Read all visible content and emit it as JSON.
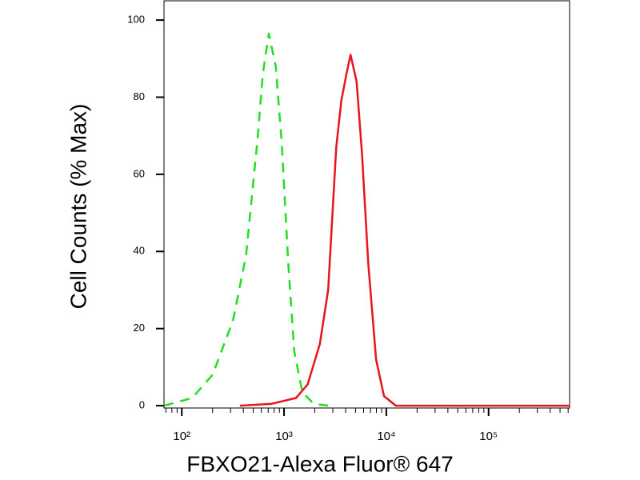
{
  "chart_data": {
    "type": "line",
    "xscale": "log",
    "xlabel": "FBXO21-Alexa Fluor® 647",
    "ylabel": "Cell Counts (% Max)",
    "xlim": [
      67,
      620000
    ],
    "ylim": [
      -0.6,
      105
    ],
    "xticks": [
      {
        "value": 100,
        "label": "10²"
      },
      {
        "value": 1000,
        "label": "10³"
      },
      {
        "value": 10000,
        "label": "10⁴"
      },
      {
        "value": 100000,
        "label": "10⁵"
      }
    ],
    "yticks": [
      0,
      20,
      40,
      60,
      80,
      100
    ],
    "series": [
      {
        "color": "#22dd22",
        "dashed": true,
        "x": [
          67,
          126,
          200,
          316,
          425,
          550,
          620,
          710,
          830,
          950,
          1100,
          1260,
          1510,
          1950,
          2700
        ],
        "values": [
          0,
          2,
          8,
          22,
          39,
          69,
          86,
          96.5,
          88,
          68,
          37,
          14,
          3.5,
          0.5,
          0
        ]
      },
      {
        "color": "#e8141c",
        "dashed": false,
        "x": [
          370,
          760,
          1310,
          1700,
          2240,
          2700,
          3240,
          3630,
          4070,
          4470,
          5130,
          5800,
          6660,
          7940,
          9500,
          12400,
          620000
        ],
        "values": [
          0,
          0.5,
          2,
          5.5,
          16,
          30,
          67,
          79,
          86,
          91,
          84,
          65,
          37,
          12,
          2.5,
          0,
          0
        ]
      }
    ]
  }
}
